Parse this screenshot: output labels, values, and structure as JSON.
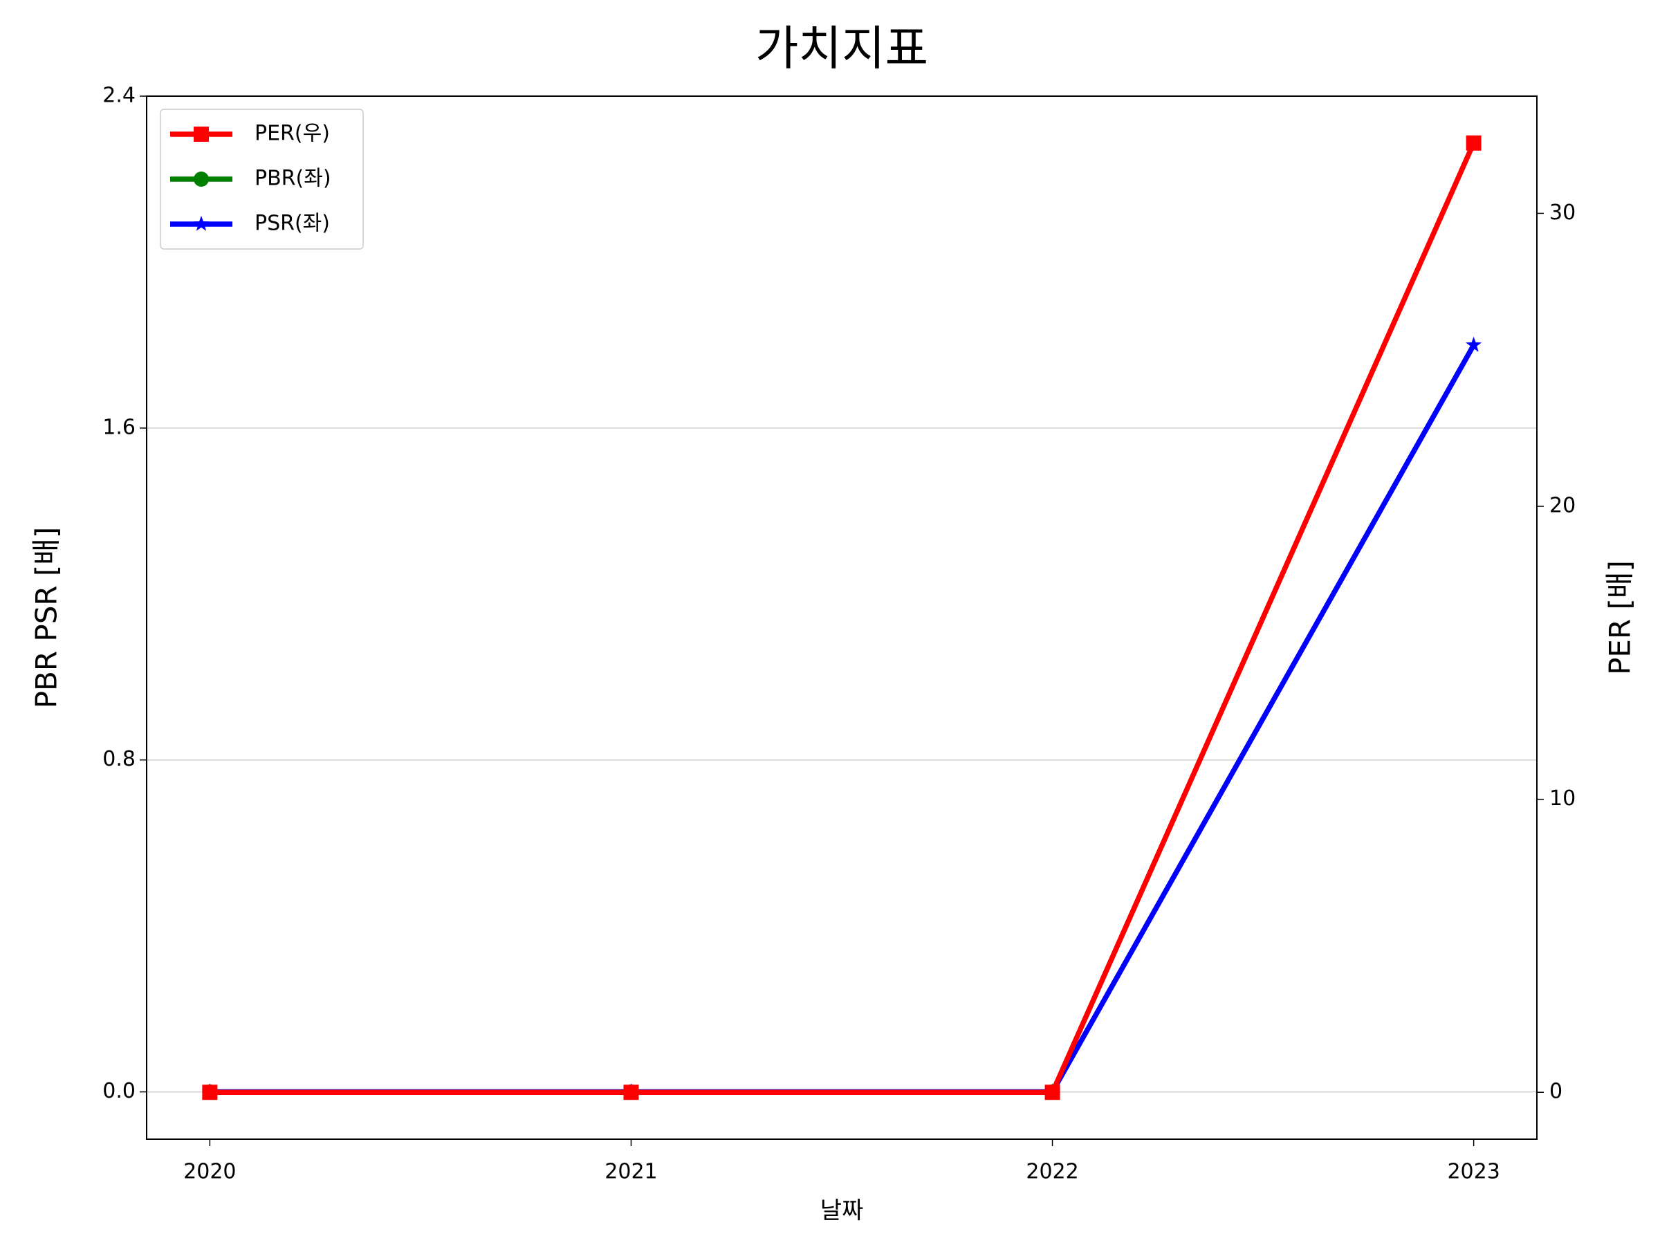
{
  "chart_data": {
    "type": "line",
    "title": "가치지표",
    "xlabel": "날짜",
    "ylabel": "PBR PSR [배]",
    "y2label": "PER [배]",
    "ylabel_color": "#008000",
    "y2label_color": "#ff0000",
    "x": [
      2020,
      2021,
      2022,
      2023
    ],
    "xlim": [
      2019.85,
      2023.15
    ],
    "xticks": [
      2020,
      2021,
      2022,
      2023
    ],
    "ylim": [
      -0.114,
      2.4
    ],
    "yticks": [
      {
        "value": 0,
        "label": "0.0"
      },
      0.8,
      1.6,
      2.4
    ],
    "y2lim": [
      -1.6,
      34
    ],
    "y2ticks": [
      0,
      10,
      20,
      30
    ],
    "grid": true,
    "legend": "upper left",
    "series": [
      {
        "name": "PER(우)",
        "color": "#ff0000",
        "marker": "square",
        "axis": "y2",
        "values": [
          0,
          0,
          0,
          32.4
        ]
      },
      {
        "name": "PBR(좌)",
        "color": "#008000",
        "marker": "circle",
        "values": [
          0,
          0,
          0,
          null
        ]
      },
      {
        "name": "PSR(좌)",
        "color": "#0000ff",
        "marker": "star",
        "values": [
          0,
          0,
          0,
          1.8
        ]
      }
    ]
  }
}
